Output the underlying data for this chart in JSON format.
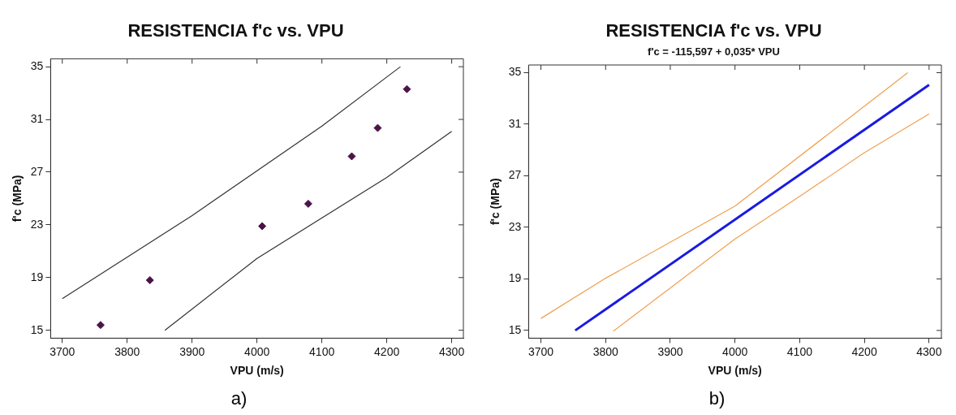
{
  "chart_data": [
    {
      "type": "scatter",
      "title": "RESISTENCIA f'c vs. VPU",
      "xlabel": "VPU (m/s)",
      "ylabel": "f'c (MPa)",
      "xlim": [
        3682,
        4318
      ],
      "ylim": [
        14.4,
        35.6
      ],
      "xticks": [
        3700,
        3800,
        3900,
        4000,
        4100,
        4200,
        4300
      ],
      "yticks": [
        15,
        19,
        23,
        27,
        31,
        35
      ],
      "grid": false,
      "legend": false,
      "annotations": [
        "a)"
      ],
      "series": [
        {
          "marker": "diamond",
          "color": "#4a1448",
          "x": [
            3759,
            3835,
            4008,
            4079,
            4146,
            4186,
            4231
          ],
          "values": [
            15.4,
            18.8,
            22.9,
            24.6,
            28.2,
            30.35,
            33.3
          ]
        },
        {
          "type": "line",
          "marker": "none",
          "color": "#333333",
          "x": [
            3700,
            3900,
            4100,
            4221
          ],
          "values": [
            17.4,
            23.7,
            30.5,
            35
          ]
        },
        {
          "type": "line",
          "marker": "none",
          "color": "#333333",
          "x": [
            3858,
            4000,
            4200,
            4300
          ],
          "values": [
            15,
            20.45,
            26.6,
            30.1
          ]
        }
      ]
    },
    {
      "type": "line",
      "title": "RESISTENCIA f'c vs. VPU",
      "subtitle": "f'c = -115,597 + 0,035* VPU",
      "xlabel": "VPU (m/s)",
      "ylabel": "f'c (MPa)",
      "xlim": [
        3681,
        4319
      ],
      "ylim": [
        14.4,
        35.6
      ],
      "xticks": [
        3700,
        3800,
        3900,
        4000,
        4100,
        4200,
        4300
      ],
      "yticks": [
        15,
        19,
        23,
        27,
        31,
        35
      ],
      "grid": false,
      "legend": false,
      "annotations": [
        "b)"
      ],
      "series": [
        {
          "marker": "none",
          "color": "#1a1ae0",
          "x": [
            3753,
            4300
          ],
          "values": [
            15,
            34.05
          ]
        },
        {
          "marker": "none",
          "color": "#f0a050",
          "x": [
            3700,
            3800,
            4000,
            4200,
            4267
          ],
          "values": [
            15.93,
            19.05,
            24.65,
            32.4,
            35
          ]
        },
        {
          "marker": "none",
          "color": "#f0a050",
          "x": [
            3812,
            4000,
            4100,
            4200,
            4300
          ],
          "values": [
            14.95,
            22.1,
            25.4,
            28.8,
            31.8
          ]
        }
      ]
    }
  ]
}
